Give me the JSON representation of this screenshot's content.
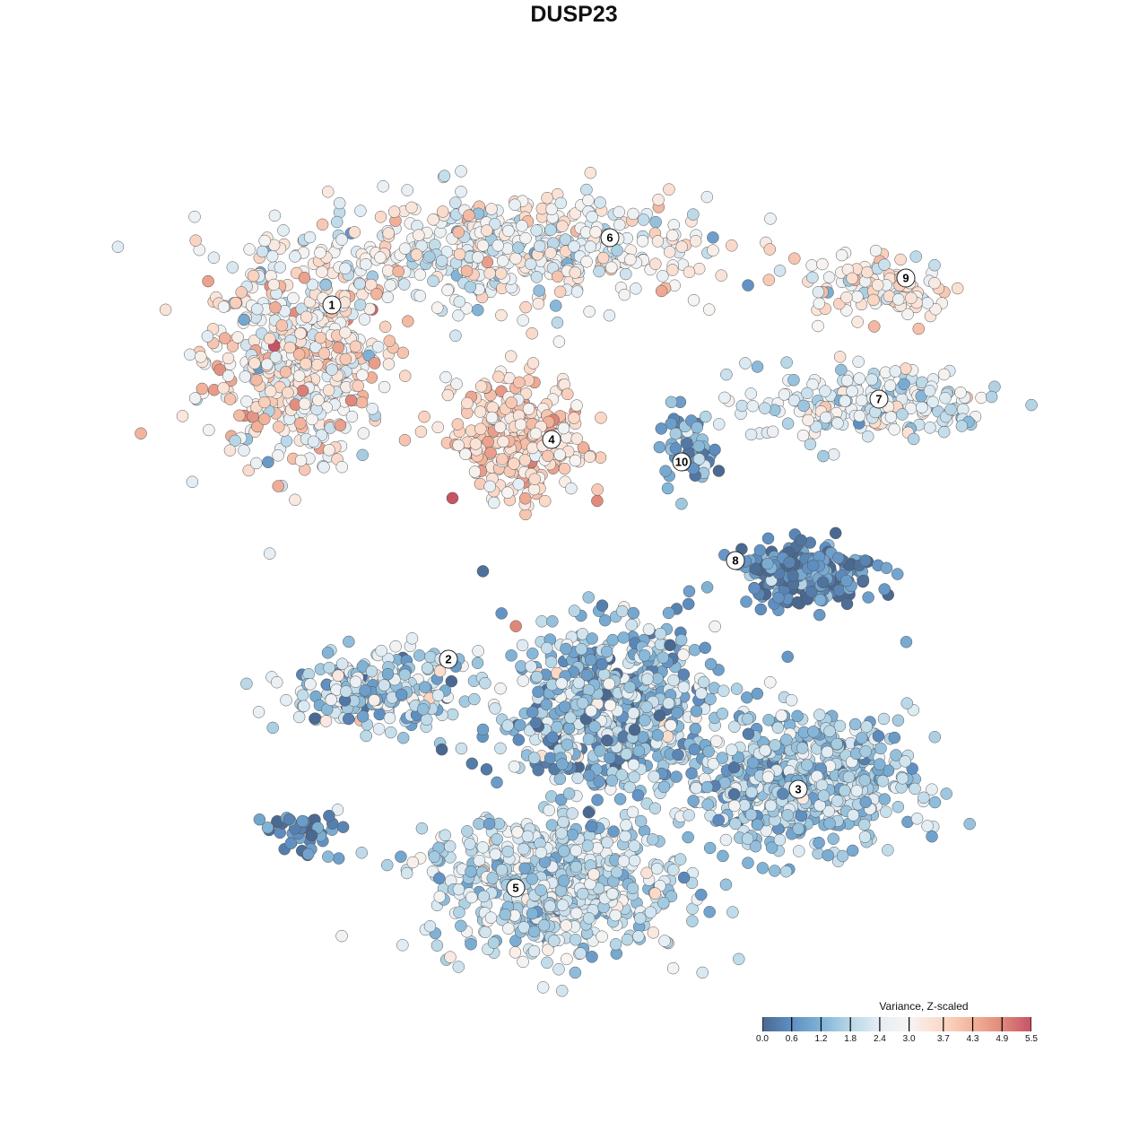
{
  "chart_data": {
    "type": "scatter",
    "title": "DUSP23",
    "xlabel": "",
    "ylabel": "",
    "grid": false,
    "xlim": [
      -46,
      52
    ],
    "ylim": [
      -46,
      46
    ],
    "color_scale": {
      "title": "Variance, Z-scaled",
      "ticks": [
        "0.0",
        "0.6",
        "1.2",
        "1.8",
        "2.4",
        "3.0",
        "3.7",
        "4.3",
        "4.9",
        "5.5"
      ],
      "tick_values": [
        0.0,
        0.6,
        1.2,
        1.8,
        2.4,
        3.0,
        3.7,
        4.3,
        4.9,
        5.5
      ],
      "colors": [
        "#4a6991",
        "#5f8fc2",
        "#80b3d6",
        "#b8d7e7",
        "#e4eef5",
        "#f7f4f2",
        "#fbd8c6",
        "#f2b29a",
        "#e0897c",
        "#c65464"
      ],
      "range": [
        0,
        5.5
      ],
      "placement": "bottom-right"
    },
    "clusters": [
      {
        "label": "1",
        "label_pos": [
          -27,
          30
        ],
        "center": [
          -31,
          24
        ],
        "spread": [
          8.5,
          9
        ],
        "n": 520,
        "mean_value": 3.1,
        "sd": 0.8
      },
      {
        "label": "6",
        "label_pos": [
          4,
          37.5
        ],
        "center": [
          -8,
          36
        ],
        "spread": [
          19,
          5
        ],
        "n": 520,
        "mean_value": 2.7,
        "sd": 0.7
      },
      {
        "label": "9",
        "label_pos": [
          37,
          33
        ],
        "center": [
          34,
          32
        ],
        "spread": [
          7,
          3
        ],
        "n": 110,
        "mean_value": 3.1,
        "sd": 0.6
      },
      {
        "label": "7",
        "label_pos": [
          34,
          19.5
        ],
        "center": [
          33,
          19
        ],
        "spread": [
          11,
          3.5
        ],
        "n": 220,
        "mean_value": 2.4,
        "sd": 0.6
      },
      {
        "label": "4",
        "label_pos": [
          -2.5,
          15
        ],
        "center": [
          -6,
          15
        ],
        "spread": [
          6,
          5.5
        ],
        "n": 300,
        "mean_value": 3.6,
        "sd": 0.6
      },
      {
        "label": "10",
        "label_pos": [
          12,
          12.5
        ],
        "center": [
          12.5,
          14
        ],
        "spread": [
          2.5,
          3.5
        ],
        "n": 60,
        "mean_value": 1.0,
        "sd": 0.6
      },
      {
        "label": "8",
        "label_pos": [
          18,
          1.5
        ],
        "center": [
          26,
          0
        ],
        "spread": [
          6.5,
          2.8
        ],
        "n": 230,
        "mean_value": 0.5,
        "sd": 0.5
      },
      {
        "label": "2",
        "label_pos": [
          -14,
          -9.5
        ],
        "center": [
          -22,
          -13
        ],
        "spread": [
          8,
          3.5
        ],
        "n": 230,
        "mean_value": 1.7,
        "sd": 0.8
      },
      {
        "label": "3",
        "label_pos": [
          25,
          -24
        ],
        "center": [
          25,
          -23
        ],
        "spread": [
          10.5,
          6
        ],
        "n": 600,
        "mean_value": 1.6,
        "sd": 0.6
      },
      {
        "label": "5",
        "label_pos": [
          -6.5,
          -35
        ],
        "center": [
          -2,
          -34.5
        ],
        "spread": [
          12,
          6.5
        ],
        "n": 600,
        "mean_value": 2.0,
        "sd": 0.6
      },
      {
        "label": "",
        "label_pos": null,
        "center": [
          4,
          -15
        ],
        "spread": [
          10,
          8
        ],
        "n": 650,
        "mean_value": 1.5,
        "sd": 0.8
      },
      {
        "label": "",
        "label_pos": null,
        "center": [
          -30,
          -29
        ],
        "spread": [
          4,
          2
        ],
        "n": 45,
        "mean_value": 0.4,
        "sd": 0.4
      }
    ]
  }
}
